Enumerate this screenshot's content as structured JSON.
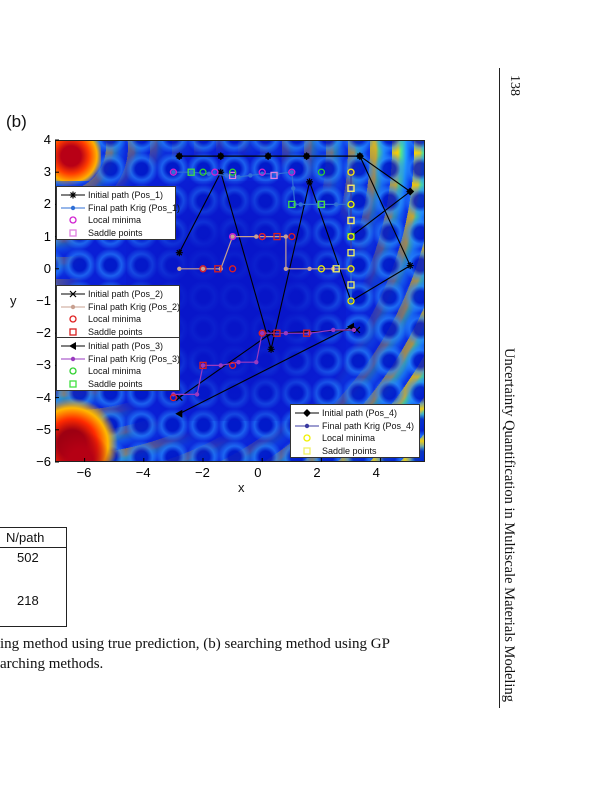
{
  "page": {
    "panel_label": "(b)",
    "page_number": "138",
    "running_head": "Uncertainty Quantification in Multiscale Materials Modeling",
    "caption_line1": "ing method using true prediction, (b) searching method using GP",
    "caption_line2": "arching methods."
  },
  "table_fragment": {
    "header": "N/path",
    "rows": [
      "502",
      "218"
    ]
  },
  "chart_data": {
    "type": "scatter",
    "title": "",
    "xlabel": "x",
    "ylabel": "y",
    "xlim": [
      -7,
      5.5
    ],
    "ylim": [
      -6,
      4
    ],
    "x_ticks": [
      -6,
      -4,
      -2,
      0,
      2,
      4
    ],
    "y_ticks": [
      4,
      3,
      2,
      1,
      0,
      -1,
      -2,
      -3,
      -4,
      -5,
      -6
    ],
    "x_tick_labels": [
      "−6",
      "−4",
      "−2",
      "0",
      "2",
      "4"
    ],
    "y_tick_labels": [
      "4",
      "3",
      "2",
      "1",
      "0",
      "−1",
      "−2",
      "−3",
      "−4",
      "−5",
      "−6"
    ],
    "background": "contour map of potential energy surface (blue = low, red = high)",
    "colors": {
      "initial_path": "#000000",
      "krig_pos1": "#2f6fd6",
      "krig_pos2": "#c8a090",
      "krig_pos3": "#9a3ac0",
      "krig_pos4": "#3a3aa0",
      "minima_pos1": "#d020d0",
      "saddle_pos1": "#e080e0",
      "minima_pos2": "#e02020",
      "saddle_pos2": "#d82020",
      "minima_pos3": "#30d030",
      "saddle_pos3": "#40e040",
      "minima_pos4": "#f0f000",
      "saddle_pos4": "#f0f060"
    },
    "legends": [
      {
        "position": "upper-left",
        "entries": [
          "Initial path (Pos_1)",
          "Final path Krig (Pos_1)",
          "Local minima",
          "Saddle points"
        ]
      },
      {
        "position": "middle-left",
        "entries": [
          "Initial path (Pos_2)",
          "Final path Krig (Pos_2)",
          "Local minima",
          "Saddle points"
        ]
      },
      {
        "position": "lower-left",
        "entries": [
          "Initial path (Pos_3)",
          "Final path Krig (Pos_3)",
          "Local minima",
          "Saddle points"
        ]
      },
      {
        "position": "lower-right",
        "entries": [
          "Initial path (Pos_4)",
          "Final path Krig (Pos_4)",
          "Local minima",
          "Saddle points"
        ]
      }
    ],
    "series": [
      {
        "name": "Initial path (Pos_1)",
        "marker": "star",
        "points": [
          [
            -2.8,
            0.5
          ],
          [
            -1.4,
            3.0
          ],
          [
            0.3,
            -2.5
          ],
          [
            1.6,
            2.7
          ],
          [
            3.0,
            -1.0
          ],
          [
            5.0,
            0.1
          ],
          [
            3.3,
            3.5
          ],
          [
            1.5,
            3.5
          ],
          [
            0.2,
            3.5
          ],
          [
            -1.4,
            3.5
          ],
          [
            -2.8,
            3.5
          ]
        ]
      },
      {
        "name": "Final path Krig (Pos_1)",
        "marker": "dot",
        "points": [
          [
            -3.0,
            3.0
          ],
          [
            -2.4,
            3.0
          ],
          [
            -1.8,
            2.95
          ],
          [
            -1.2,
            2.9
          ],
          [
            -0.8,
            2.85
          ],
          [
            -0.4,
            2.9
          ],
          [
            0.0,
            2.95
          ],
          [
            0.5,
            2.95
          ],
          [
            1.0,
            3.0
          ],
          [
            1.05,
            2.5
          ],
          [
            1.1,
            2.0
          ],
          [
            1.3,
            2.0
          ],
          [
            1.9,
            2.0
          ],
          [
            2.5,
            2.0
          ],
          [
            2.9,
            2.0
          ],
          [
            3.0,
            1.0
          ],
          [
            3.0,
            0.0
          ],
          [
            3.0,
            -1.0
          ]
        ]
      },
      {
        "name": "Initial path (Pos_2)",
        "marker": "x",
        "points": [
          [
            -2.8,
            -4.0
          ],
          [
            0.3,
            -2.0
          ],
          [
            3.2,
            -1.9
          ]
        ]
      },
      {
        "name": "Final path Krig (Pos_2)",
        "marker": "dot",
        "points": [
          [
            -2.8,
            0.0
          ],
          [
            -2.0,
            0.0
          ],
          [
            -1.4,
            0.0
          ],
          [
            -1.0,
            1.0
          ],
          [
            -0.2,
            1.0
          ],
          [
            0.8,
            1.0
          ],
          [
            0.8,
            0.0
          ],
          [
            1.6,
            0.0
          ],
          [
            2.4,
            0.0
          ],
          [
            3.0,
            0.0
          ]
        ]
      },
      {
        "name": "Initial path (Pos_3)",
        "marker": "triangle",
        "points": [
          [
            -2.8,
            -4.5
          ],
          [
            3.0,
            -1.8
          ]
        ]
      },
      {
        "name": "Final path Krig (Pos_3)",
        "marker": "dot",
        "points": [
          [
            -3.0,
            -3.9
          ],
          [
            -2.2,
            -3.9
          ],
          [
            -2.0,
            -3.0
          ],
          [
            -1.4,
            -3.0
          ],
          [
            -0.8,
            -2.9
          ],
          [
            -0.2,
            -2.9
          ],
          [
            0.0,
            -2.0
          ],
          [
            0.8,
            -2.0
          ],
          [
            1.6,
            -2.0
          ],
          [
            2.4,
            -1.9
          ],
          [
            3.1,
            -1.9
          ]
        ]
      },
      {
        "name": "Initial path (Pos_4)",
        "marker": "diamond",
        "points": [
          [
            -2.8,
            3.5
          ],
          [
            -1.4,
            3.5
          ],
          [
            0.2,
            3.5
          ],
          [
            1.5,
            3.5
          ],
          [
            3.3,
            3.5
          ],
          [
            5.0,
            2.4
          ],
          [
            3.0,
            1.0
          ]
        ]
      },
      {
        "name": "Final path Krig (Pos_4)",
        "marker": "dot",
        "points": [
          [
            3.0,
            3.0
          ],
          [
            3.0,
            2.0
          ],
          [
            3.0,
            1.0
          ],
          [
            3.0,
            0.0
          ]
        ]
      }
    ],
    "minima_pos1": [
      [
        -3.0,
        3.0
      ],
      [
        -1.6,
        3.0
      ],
      [
        0.0,
        3.0
      ],
      [
        1.0,
        3.0
      ],
      [
        3.0,
        3.0
      ],
      [
        -1.0,
        1.0
      ],
      [
        0.0,
        1.0
      ]
    ],
    "saddle_pos1": [
      [
        -1.0,
        2.9
      ],
      [
        0.4,
        2.9
      ],
      [
        2.0,
        2.0
      ],
      [
        3.0,
        1.5
      ],
      [
        3.0,
        2.5
      ]
    ],
    "minima_pos2": [
      [
        -2.0,
        0.0
      ],
      [
        -1.0,
        0.0
      ],
      [
        0.0,
        1.0
      ],
      [
        1.0,
        1.0
      ],
      [
        0.0,
        -2.0
      ],
      [
        -3.0,
        -4.0
      ],
      [
        -1.0,
        -3.0
      ]
    ],
    "saddle_pos2": [
      [
        -1.5,
        0.0
      ],
      [
        0.5,
        1.0
      ],
      [
        0.5,
        -2.0
      ],
      [
        -2.0,
        -3.0
      ],
      [
        1.5,
        -2.0
      ]
    ],
    "minima_pos3": [
      [
        -2.0,
        3.0
      ],
      [
        -1.0,
        3.0
      ],
      [
        2.0,
        3.0
      ],
      [
        3.0,
        2.0
      ]
    ],
    "saddle_pos3": [
      [
        -2.4,
        3.0
      ],
      [
        1.0,
        2.0
      ],
      [
        2.0,
        2.0
      ],
      [
        3.0,
        1.0
      ]
    ],
    "minima_pos4": [
      [
        3.0,
        3.0
      ],
      [
        3.0,
        2.0
      ],
      [
        3.0,
        1.0
      ],
      [
        3.0,
        0.0
      ],
      [
        2.0,
        0.0
      ],
      [
        3.0,
        -1.0
      ]
    ],
    "saddle_pos4": [
      [
        3.0,
        2.5
      ],
      [
        3.0,
        1.5
      ],
      [
        3.0,
        0.5
      ],
      [
        3.0,
        -0.5
      ],
      [
        2.5,
        0.0
      ]
    ]
  }
}
